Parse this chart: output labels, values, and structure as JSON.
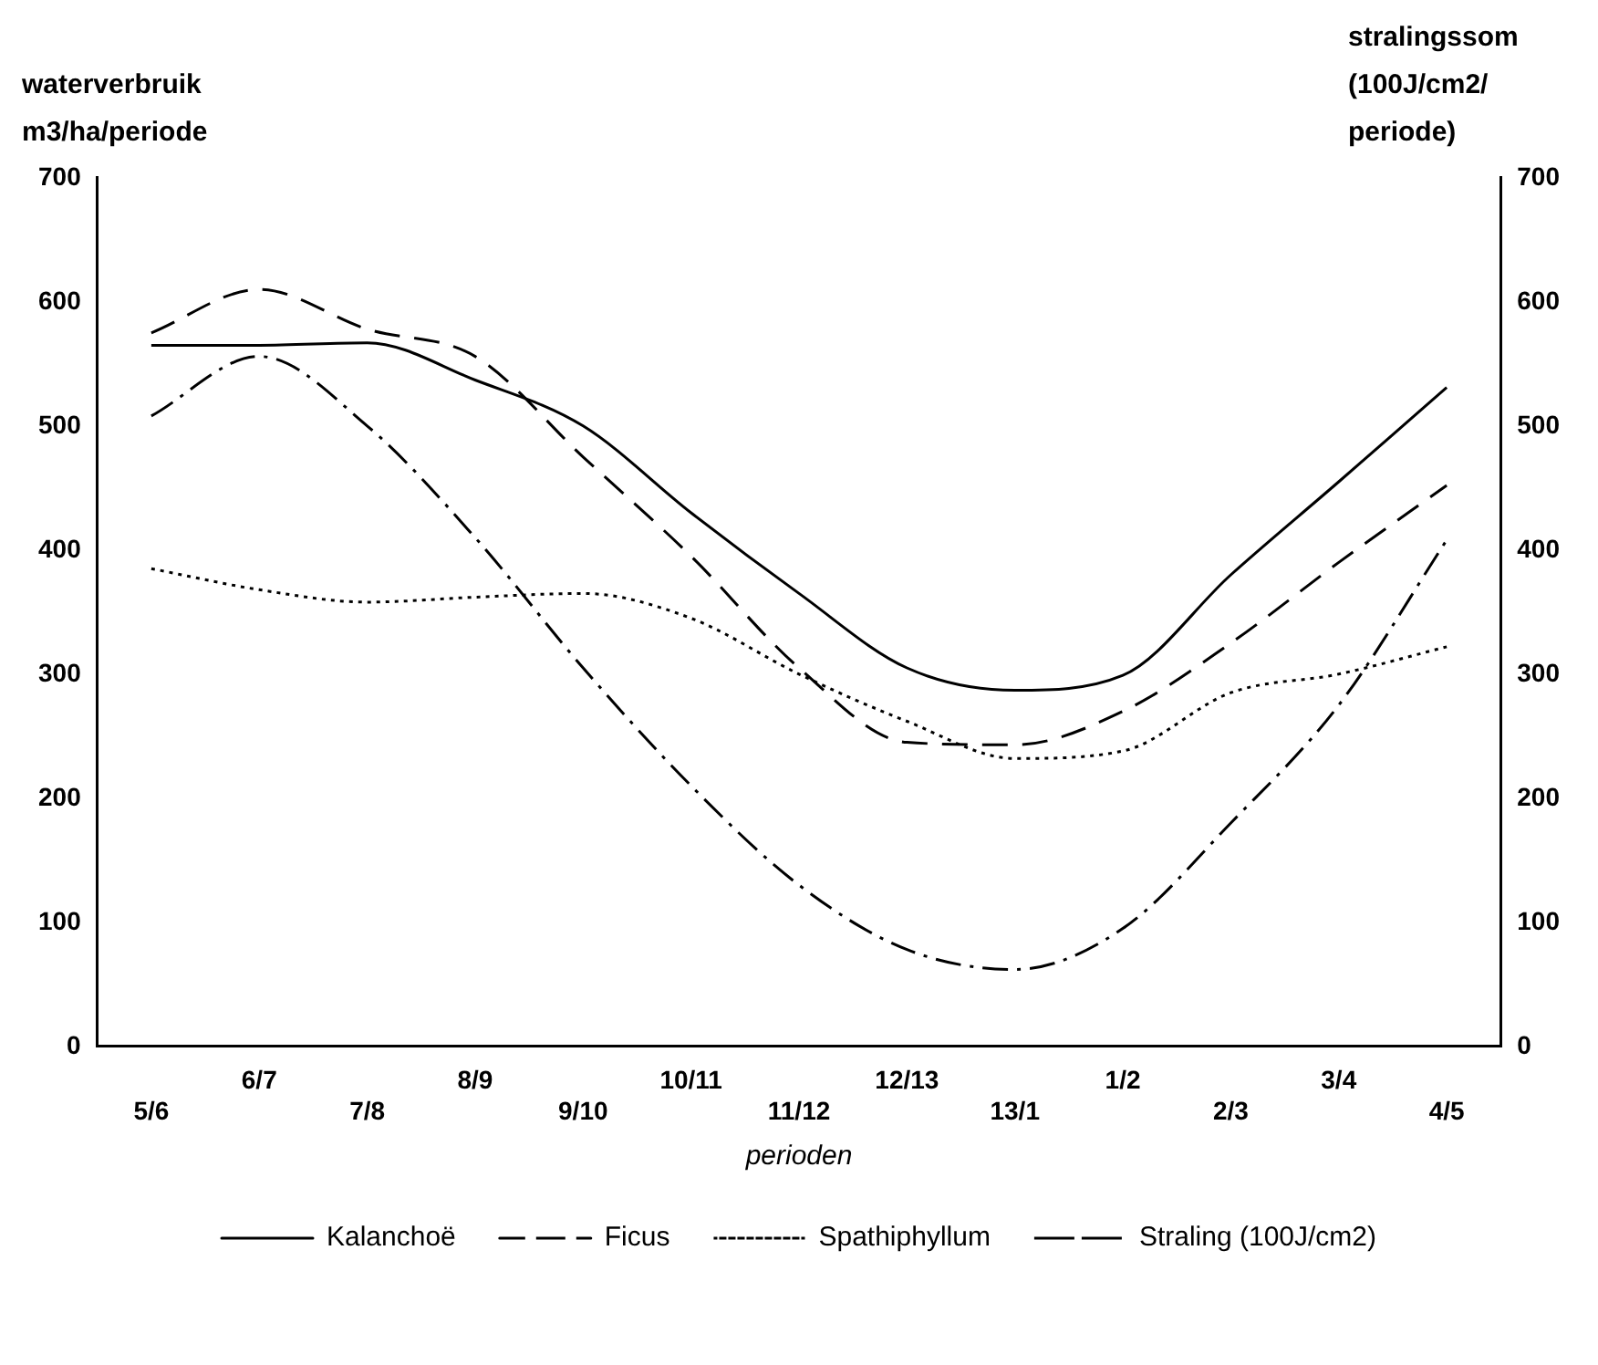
{
  "chart_data": {
    "type": "line",
    "ylabel": "waterverbruik m3/ha/periode",
    "y2label": "stralingssom (100J/cm2/ periode)",
    "xlabel": "perioden",
    "categories": [
      "5/6",
      "6/7",
      "7/8",
      "8/9",
      "9/10",
      "10/11",
      "11/12",
      "12/13",
      "13/1",
      "1/2",
      "2/3",
      "3/4",
      "4/5"
    ],
    "series": [
      {
        "name": "Kalanchoë",
        "color": "#000000",
        "line_style": "solid",
        "values": [
          565,
          565,
          567,
          537,
          500,
          430,
          365,
          305,
          287,
          299,
          380,
          455,
          531
        ]
      },
      {
        "name": "Ficus",
        "color": "#000000",
        "line_style": "dashed",
        "values": [
          575,
          610,
          578,
          556,
          475,
          395,
          305,
          245,
          243,
          270,
          325,
          390,
          452
        ]
      },
      {
        "name": "Spathiphyllum",
        "color": "#000000",
        "line_style": "dotted",
        "values": [
          385,
          368,
          358,
          362,
          365,
          345,
          300,
          262,
          232,
          238,
          285,
          300,
          322
        ]
      },
      {
        "name": "Straling (100J/cm2)",
        "color": "#000000",
        "line_style": "dashdot",
        "values": [
          508,
          556,
          500,
          410,
          305,
          210,
          130,
          78,
          62,
          95,
          180,
          275,
          408
        ]
      }
    ],
    "ylim": [
      0,
      700
    ],
    "yticks": [
      0,
      100,
      200,
      300,
      400,
      500,
      600,
      700
    ],
    "y2lim": [
      0,
      700
    ],
    "y2ticks": [
      0,
      100,
      200,
      300,
      400,
      500,
      600,
      700
    ],
    "grid": false,
    "legend": "bottom",
    "marker": "none"
  }
}
